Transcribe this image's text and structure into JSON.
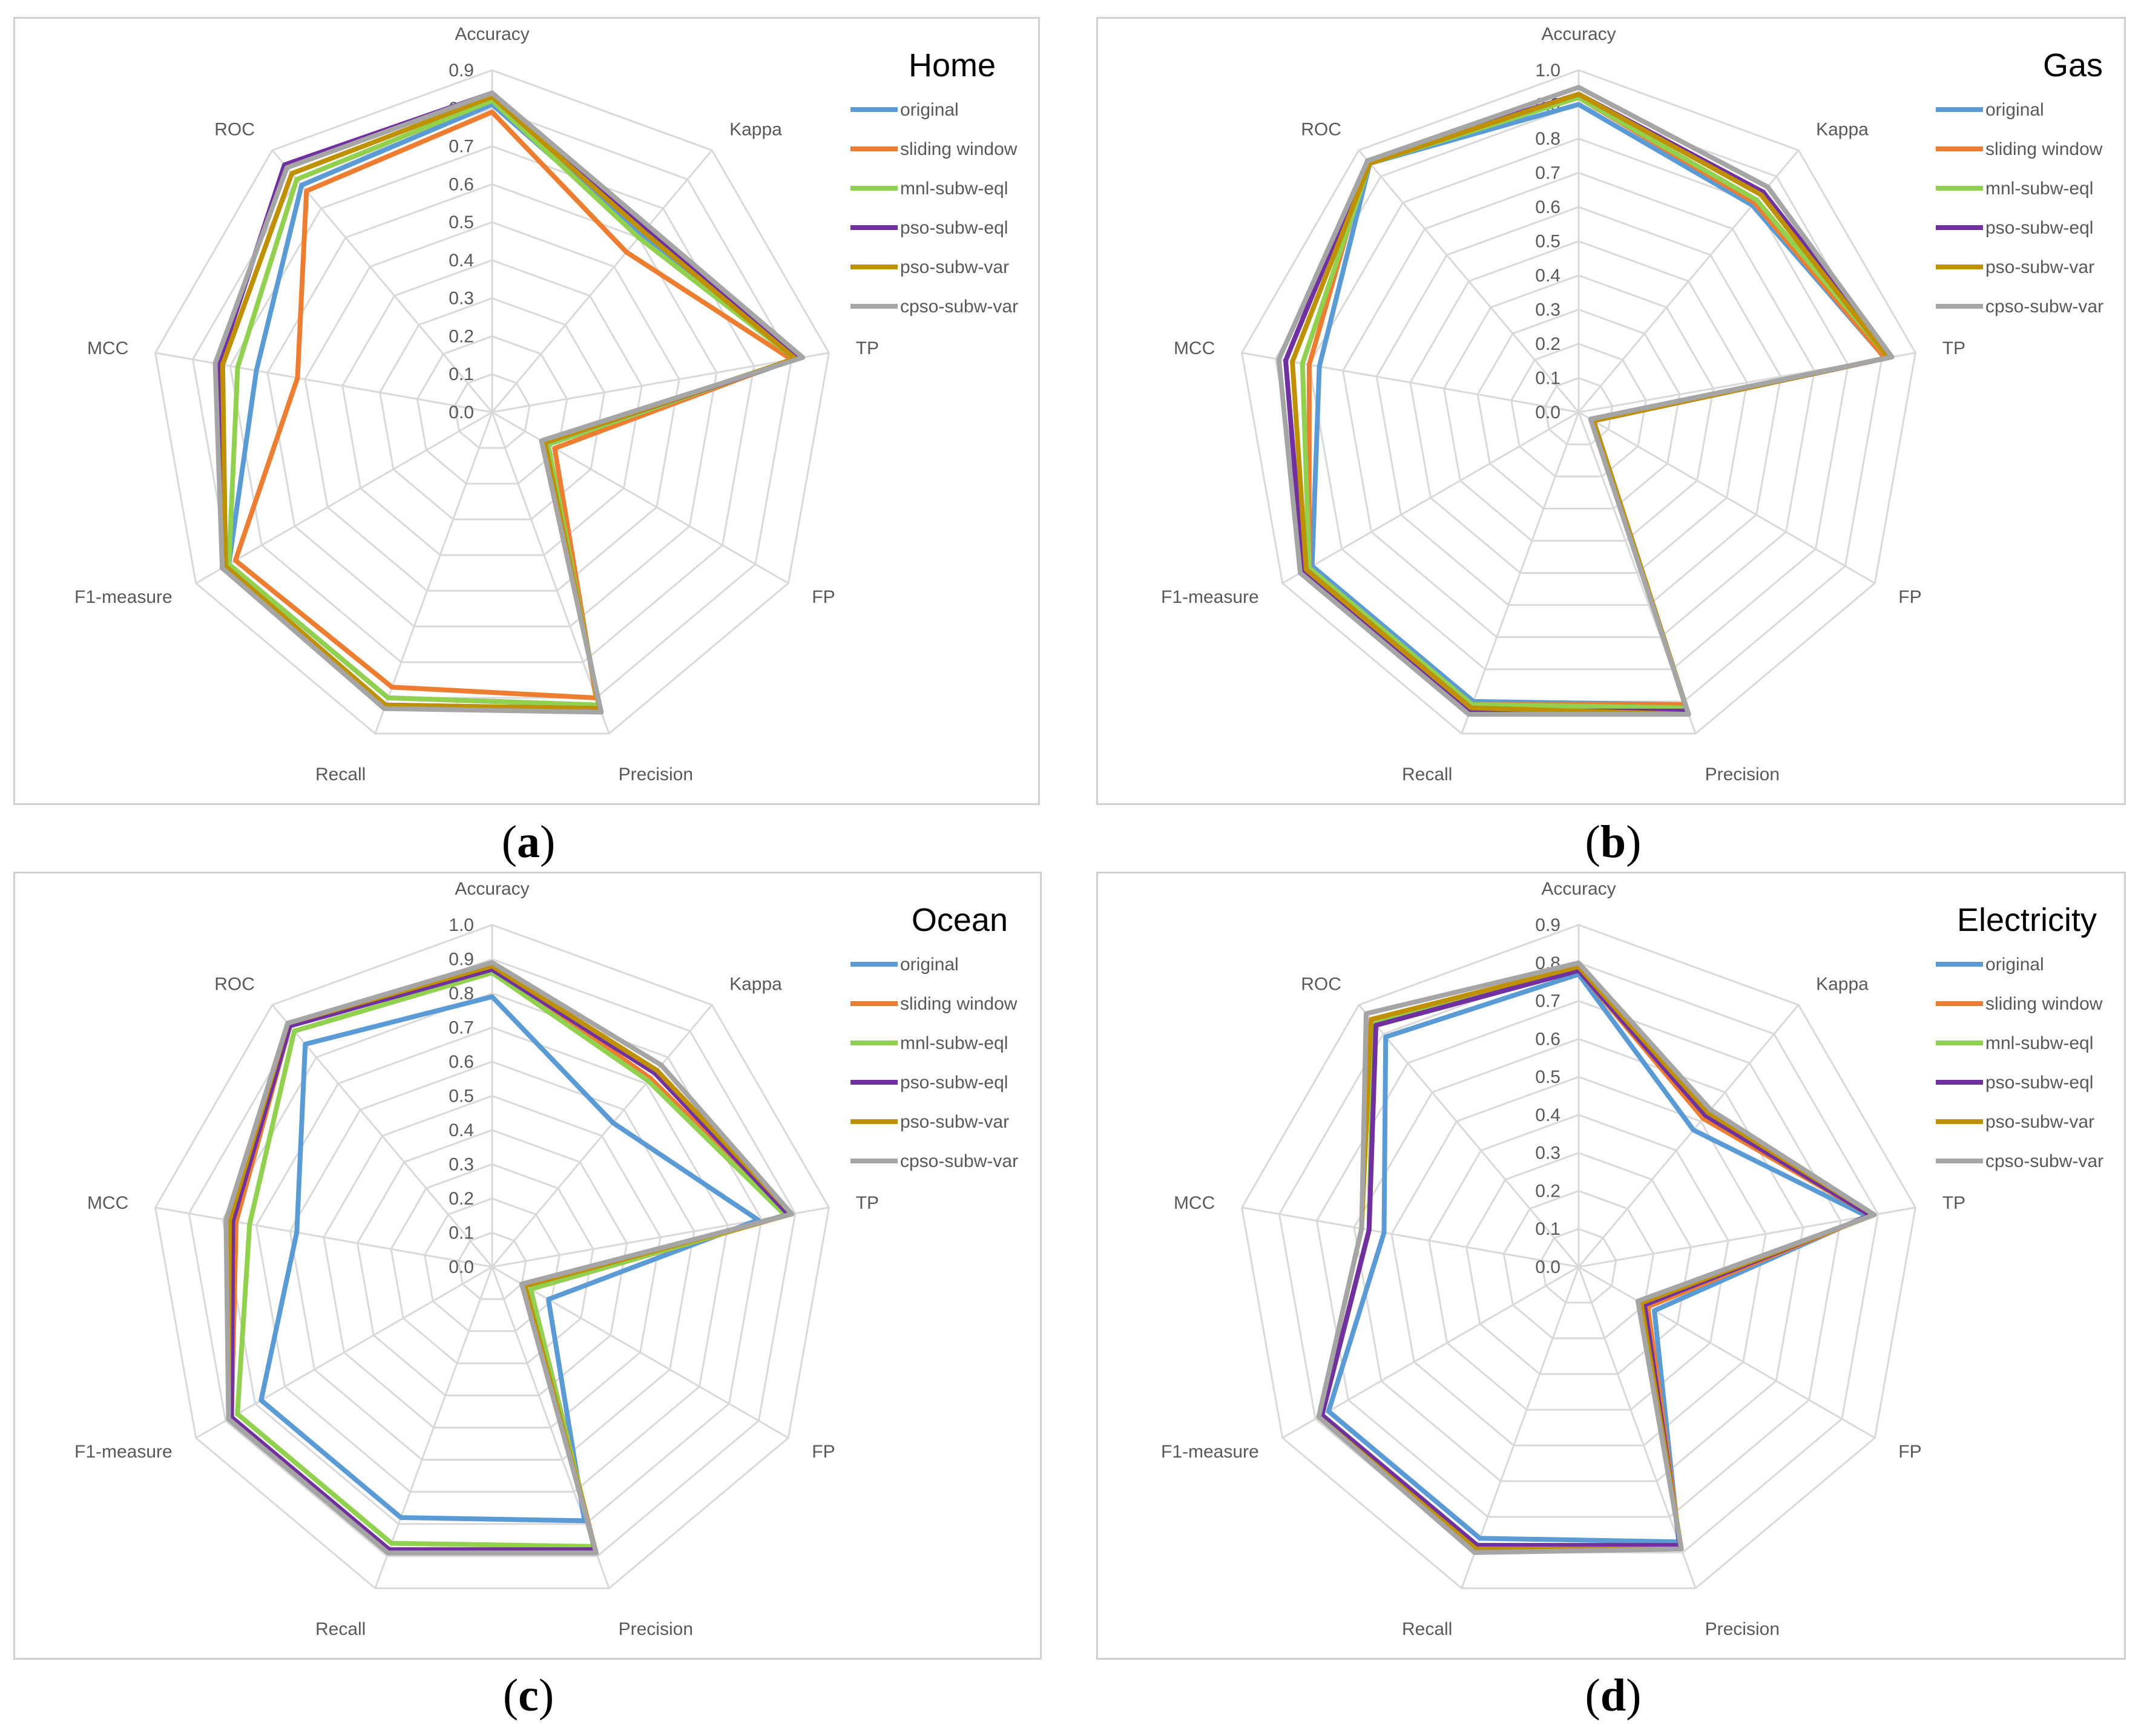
{
  "axes": [
    "Accuracy",
    "Kappa",
    "TP",
    "FP",
    "Precision",
    "Recall",
    "F1-measure",
    "MCC",
    "ROC"
  ],
  "series_styles": [
    {
      "name": "original",
      "color": "#5b9bd5"
    },
    {
      "name": "sliding window",
      "color": "#ed7d31"
    },
    {
      "name": "mnl-subw-eql",
      "color": "#92d050"
    },
    {
      "name": "pso-subw-eql",
      "color": "#7030a0"
    },
    {
      "name": "pso-subw-var",
      "color": "#bf9000"
    },
    {
      "name": "cpso-subw-var",
      "color": "#a5a5a5"
    }
  ],
  "captions": [
    {
      "letter": "a"
    },
    {
      "letter": "b"
    },
    {
      "letter": "c"
    },
    {
      "letter": "d"
    }
  ],
  "chart_data": [
    {
      "type": "radar",
      "title": "Home",
      "axes": [
        "Accuracy",
        "Kappa",
        "TP",
        "FP",
        "Precision",
        "Recall",
        "F1-measure",
        "MCC",
        "ROC"
      ],
      "range": [
        0,
        0.9
      ],
      "tick_labels": [
        "0.0",
        "0.1",
        "0.2",
        "0.3",
        "0.4",
        "0.5",
        "0.6",
        "0.7",
        "0.8",
        "0.9"
      ],
      "series": [
        {
          "name": "original",
          "values": [
            0.81,
            0.61,
            0.82,
            0.17,
            0.82,
            0.8,
            0.8,
            0.63,
            0.78
          ]
        },
        {
          "name": "sliding window",
          "values": [
            0.79,
            0.55,
            0.8,
            0.19,
            0.8,
            0.77,
            0.78,
            0.52,
            0.76
          ]
        },
        {
          "name": "mnl-subw-eql",
          "values": [
            0.82,
            0.6,
            0.81,
            0.17,
            0.82,
            0.8,
            0.8,
            0.68,
            0.8
          ]
        },
        {
          "name": "pso-subw-eql",
          "values": [
            0.84,
            0.63,
            0.82,
            0.16,
            0.83,
            0.82,
            0.82,
            0.73,
            0.85
          ]
        },
        {
          "name": "pso-subw-var",
          "values": [
            0.83,
            0.62,
            0.81,
            0.16,
            0.83,
            0.82,
            0.81,
            0.72,
            0.82
          ]
        },
        {
          "name": "cpso-subw-var",
          "values": [
            0.84,
            0.64,
            0.83,
            0.15,
            0.84,
            0.83,
            0.82,
            0.74,
            0.84
          ]
        }
      ]
    },
    {
      "type": "radar",
      "title": "Gas",
      "axes": [
        "Accuracy",
        "Kappa",
        "TP",
        "FP",
        "Precision",
        "Recall",
        "F1-measure",
        "MCC",
        "ROC"
      ],
      "range": [
        0,
        1.0
      ],
      "tick_labels": [
        "0.0",
        "0.1",
        "0.2",
        "0.3",
        "0.4",
        "0.5",
        "0.6",
        "0.7",
        "0.8",
        "0.9",
        "1.0"
      ],
      "series": [
        {
          "name": "original",
          "values": [
            0.9,
            0.79,
            0.91,
            0.05,
            0.91,
            0.9,
            0.9,
            0.77,
            0.95
          ]
        },
        {
          "name": "sliding window",
          "values": [
            0.92,
            0.8,
            0.91,
            0.05,
            0.91,
            0.91,
            0.91,
            0.8,
            0.96
          ]
        },
        {
          "name": "mnl-subw-eql",
          "values": [
            0.92,
            0.81,
            0.92,
            0.05,
            0.92,
            0.91,
            0.91,
            0.82,
            0.95
          ]
        },
        {
          "name": "pso-subw-eql",
          "values": [
            0.93,
            0.84,
            0.93,
            0.05,
            0.93,
            0.93,
            0.93,
            0.87,
            0.96
          ]
        },
        {
          "name": "pso-subw-var",
          "values": [
            0.93,
            0.83,
            0.92,
            0.05,
            0.94,
            0.92,
            0.92,
            0.85,
            0.95
          ]
        },
        {
          "name": "cpso-subw-var",
          "values": [
            0.95,
            0.86,
            0.93,
            0.04,
            0.94,
            0.94,
            0.94,
            0.89,
            0.96
          ]
        }
      ]
    },
    {
      "type": "radar",
      "title": "Ocean",
      "axes": [
        "Accuracy",
        "Kappa",
        "TP",
        "FP",
        "Precision",
        "Recall",
        "F1-measure",
        "MCC",
        "ROC"
      ],
      "range": [
        0,
        1.0
      ],
      "tick_labels": [
        "0.0",
        "0.1",
        "0.2",
        "0.3",
        "0.4",
        "0.5",
        "0.6",
        "0.7",
        "0.8",
        "0.9",
        "1.0"
      ],
      "series": [
        {
          "name": "original",
          "values": [
            0.79,
            0.55,
            0.79,
            0.19,
            0.79,
            0.78,
            0.78,
            0.58,
            0.85
          ]
        },
        {
          "name": "sliding window",
          "values": [
            0.88,
            0.72,
            0.88,
            0.13,
            0.88,
            0.88,
            0.88,
            0.76,
            0.92
          ]
        },
        {
          "name": "mnl-subw-eql",
          "values": [
            0.86,
            0.71,
            0.87,
            0.13,
            0.87,
            0.86,
            0.86,
            0.72,
            0.9
          ]
        },
        {
          "name": "pso-subw-eql",
          "values": [
            0.87,
            0.74,
            0.88,
            0.11,
            0.88,
            0.88,
            0.88,
            0.77,
            0.92
          ]
        },
        {
          "name": "pso-subw-var",
          "values": [
            0.88,
            0.75,
            0.89,
            0.11,
            0.89,
            0.89,
            0.89,
            0.78,
            0.93
          ]
        },
        {
          "name": "cpso-subw-var",
          "values": [
            0.89,
            0.77,
            0.89,
            0.1,
            0.89,
            0.89,
            0.89,
            0.79,
            0.93
          ]
        }
      ]
    },
    {
      "type": "radar",
      "title": "Electricity",
      "axes": [
        "Accuracy",
        "Kappa",
        "TP",
        "FP",
        "Precision",
        "Recall",
        "F1-measure",
        "MCC",
        "ROC"
      ],
      "range": [
        0,
        0.9
      ],
      "tick_labels": [
        "0.0",
        "0.1",
        "0.2",
        "0.3",
        "0.4",
        "0.5",
        "0.6",
        "0.7",
        "0.8",
        "0.9"
      ],
      "series": [
        {
          "name": "original",
          "values": [
            0.77,
            0.47,
            0.77,
            0.23,
            0.77,
            0.76,
            0.76,
            0.52,
            0.79
          ]
        },
        {
          "name": "sliding window",
          "values": [
            0.78,
            0.51,
            0.78,
            0.21,
            0.78,
            0.78,
            0.78,
            0.56,
            0.84
          ]
        },
        {
          "name": "mnl-subw-eql",
          "values": [
            0.78,
            0.52,
            0.78,
            0.2,
            0.78,
            0.78,
            0.78,
            0.56,
            0.84
          ]
        },
        {
          "name": "pso-subw-eql",
          "values": [
            0.78,
            0.52,
            0.78,
            0.2,
            0.78,
            0.78,
            0.78,
            0.56,
            0.83
          ]
        },
        {
          "name": "pso-subw-var",
          "values": [
            0.79,
            0.53,
            0.79,
            0.19,
            0.79,
            0.79,
            0.79,
            0.58,
            0.85
          ]
        },
        {
          "name": "cpso-subw-var",
          "values": [
            0.8,
            0.54,
            0.79,
            0.18,
            0.79,
            0.8,
            0.79,
            0.58,
            0.87
          ]
        }
      ]
    }
  ]
}
